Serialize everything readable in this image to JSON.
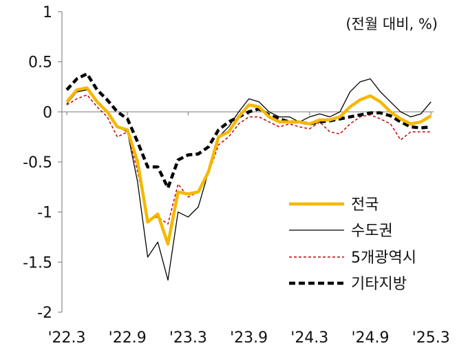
{
  "chart_data": {
    "type": "line",
    "title": "",
    "unit_label": "(전월 대비, %)",
    "xlabel": "",
    "ylabel": "",
    "ylim": [
      -2,
      1
    ],
    "y_ticks": [
      1,
      0.5,
      0,
      -0.5,
      -1,
      -1.5,
      -2
    ],
    "y_tick_labels": [
      "1",
      "0.5",
      "0",
      "-0.5",
      "-1",
      "-1.5",
      "-2"
    ],
    "x_tick_labels": [
      "'22.3",
      "'22.9",
      "'23.3",
      "'23.9",
      "'24.3",
      "'24.9",
      "'25.3"
    ],
    "x_tick_positions": [
      0,
      6,
      12,
      18,
      24,
      30,
      36
    ],
    "grid": false,
    "legend_position": "bottom-right",
    "series": [
      {
        "name": "전국",
        "color": "#F5B800",
        "style": "solid-thick",
        "values": [
          0.1,
          0.22,
          0.24,
          0.1,
          0.0,
          -0.15,
          -0.18,
          -0.5,
          -1.1,
          -1.02,
          -1.32,
          -0.8,
          -0.82,
          -0.8,
          -0.6,
          -0.25,
          -0.2,
          -0.05,
          0.07,
          0.05,
          -0.05,
          -0.1,
          -0.1,
          -0.1,
          -0.12,
          -0.08,
          -0.08,
          -0.05,
          0.05,
          0.12,
          0.16,
          0.1,
          0.0,
          -0.07,
          -0.12,
          -0.1,
          -0.04
        ]
      },
      {
        "name": "수도권",
        "color": "#000000",
        "style": "solid-thin",
        "values": [
          0.08,
          0.2,
          0.22,
          0.1,
          0.0,
          -0.15,
          -0.2,
          -0.7,
          -1.45,
          -1.3,
          -1.68,
          -1.0,
          -1.05,
          -0.95,
          -0.6,
          -0.25,
          -0.15,
          0.0,
          0.13,
          0.1,
          0.0,
          -0.05,
          -0.05,
          -0.1,
          -0.05,
          -0.02,
          -0.05,
          0.0,
          0.2,
          0.3,
          0.33,
          0.2,
          0.1,
          0.0,
          -0.05,
          -0.02,
          0.1
        ]
      },
      {
        "name": "5개광역시",
        "color": "#C00000",
        "style": "dashed-thin",
        "values": [
          0.07,
          0.13,
          0.17,
          0.05,
          -0.05,
          -0.25,
          -0.2,
          -0.6,
          -1.07,
          -1.05,
          -1.12,
          -0.72,
          -0.85,
          -0.8,
          -0.62,
          -0.33,
          -0.25,
          -0.12,
          -0.05,
          -0.05,
          -0.1,
          -0.15,
          -0.12,
          -0.15,
          -0.17,
          -0.1,
          -0.2,
          -0.22,
          -0.12,
          -0.05,
          -0.03,
          -0.07,
          -0.12,
          -0.28,
          -0.2,
          -0.2,
          -0.2
        ]
      },
      {
        "name": "기타지방",
        "color": "#000000",
        "style": "dashed-thick",
        "values": [
          0.22,
          0.33,
          0.38,
          0.22,
          0.12,
          0.0,
          -0.07,
          -0.3,
          -0.55,
          -0.55,
          -0.76,
          -0.48,
          -0.43,
          -0.42,
          -0.35,
          -0.18,
          -0.1,
          -0.05,
          0.0,
          0.03,
          -0.03,
          -0.07,
          -0.1,
          -0.1,
          -0.12,
          -0.1,
          -0.09,
          -0.07,
          -0.05,
          -0.03,
          -0.01,
          -0.01,
          -0.04,
          -0.1,
          -0.15,
          -0.16,
          -0.15
        ]
      }
    ]
  }
}
